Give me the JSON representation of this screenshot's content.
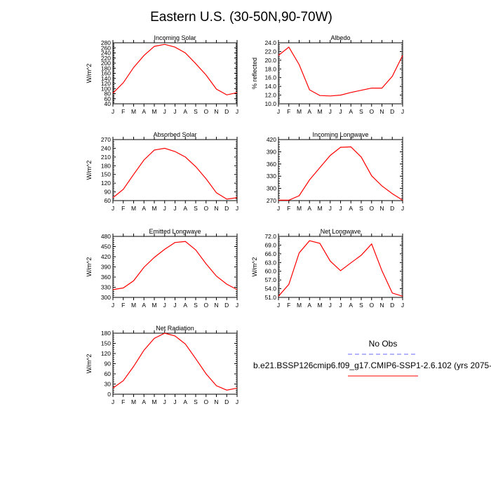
{
  "figure": {
    "title": "Eastern U.S. (30-50N,90-70W)",
    "legend": {
      "obs_label": "No Obs",
      "model_label": "b.e21.BSSP126cmip6.f09_g17.CMIP6-SSP1-2.6.102 (yrs 2075-",
      "obs_color": "#6b6bff",
      "model_color": "#ff0000"
    }
  },
  "chart_data": [
    {
      "type": "line",
      "title": "Incoming Solar",
      "ylabel": "W/m^2",
      "categories": [
        "J",
        "F",
        "M",
        "A",
        "M",
        "J",
        "J",
        "A",
        "S",
        "O",
        "N",
        "D",
        "J"
      ],
      "ylim": [
        40,
        280
      ],
      "yticks": [
        "40",
        "60",
        "80",
        "100",
        "120",
        "140",
        "160",
        "180",
        "200",
        "220",
        "240",
        "260",
        "280"
      ],
      "series": [
        {
          "color": "#ff0000",
          "values": [
            82,
            123,
            183,
            230,
            266,
            274,
            263,
            240,
            198,
            153,
            98,
            75,
            84
          ]
        }
      ]
    },
    {
      "type": "line",
      "title": "Albedo",
      "ylabel": "% reflected",
      "categories": [
        "J",
        "F",
        "M",
        "A",
        "M",
        "J",
        "J",
        "A",
        "S",
        "O",
        "N",
        "D",
        "J"
      ],
      "ylim": [
        10,
        24
      ],
      "yticks": [
        "10.0",
        "12.0",
        "14.0",
        "16.0",
        "18.0",
        "20.0",
        "22.0",
        "24.0"
      ],
      "series": [
        {
          "color": "#ff0000",
          "values": [
            21.1,
            23.0,
            19.0,
            13.2,
            11.9,
            11.8,
            12.0,
            12.6,
            13.1,
            13.6,
            13.6,
            16.3,
            21.1
          ]
        }
      ]
    },
    {
      "type": "line",
      "title": "Absorbed Solar",
      "ylabel": "W/m^2",
      "categories": [
        "J",
        "F",
        "M",
        "A",
        "M",
        "J",
        "J",
        "A",
        "S",
        "O",
        "N",
        "D",
        "J"
      ],
      "ylim": [
        60,
        270
      ],
      "yticks": [
        "60",
        "90",
        "120",
        "150",
        "180",
        "210",
        "240",
        "270"
      ],
      "series": [
        {
          "color": "#ff0000",
          "values": [
            70,
            99,
            150,
            200,
            234,
            240,
            229,
            210,
            177,
            135,
            87,
            65,
            70
          ]
        }
      ]
    },
    {
      "type": "line",
      "title": "Incoming Longwave",
      "ylabel": "",
      "categories": [
        "J",
        "F",
        "M",
        "A",
        "M",
        "J",
        "J",
        "A",
        "S",
        "O",
        "N",
        "D",
        "J"
      ],
      "ylim": [
        270,
        420
      ],
      "yticks": [
        "270",
        "300",
        "330",
        "360",
        "390",
        "420"
      ],
      "series": [
        {
          "color": "#ff0000",
          "values": [
            271,
            271,
            282,
            321,
            351,
            381,
            401,
            402,
            377,
            331,
            306,
            287,
            271
          ]
        }
      ]
    },
    {
      "type": "line",
      "title": "Emitted Longwave",
      "ylabel": "W/m^2",
      "categories": [
        "J",
        "F",
        "M",
        "A",
        "M",
        "J",
        "J",
        "A",
        "S",
        "O",
        "N",
        "D",
        "J"
      ],
      "ylim": [
        300,
        480
      ],
      "yticks": [
        "300",
        "330",
        "360",
        "390",
        "420",
        "450",
        "480"
      ],
      "series": [
        {
          "color": "#ff0000",
          "values": [
            323,
            328,
            349,
            389,
            418,
            442,
            462,
            465,
            440,
            399,
            363,
            339,
            323
          ]
        }
      ]
    },
    {
      "type": "line",
      "title": "Net Longwave",
      "ylabel": "W/m^2",
      "categories": [
        "J",
        "F",
        "M",
        "A",
        "M",
        "J",
        "J",
        "A",
        "S",
        "O",
        "N",
        "D",
        "J"
      ],
      "ylim": [
        51,
        72
      ],
      "yticks": [
        "51.0",
        "54.0",
        "57.0",
        "60.0",
        "63.0",
        "66.0",
        "69.0",
        "72.0"
      ],
      "series": [
        {
          "color": "#ff0000",
          "values": [
            51.4,
            55.5,
            66.3,
            70.5,
            69.6,
            63.5,
            60.2,
            62.9,
            65.5,
            69.4,
            60.2,
            52.5,
            51.4
          ]
        }
      ]
    },
    {
      "type": "line",
      "title": "Net Radiation",
      "ylabel": "W/m^2",
      "categories": [
        "J",
        "F",
        "M",
        "A",
        "M",
        "J",
        "J",
        "A",
        "S",
        "O",
        "N",
        "D",
        "J"
      ],
      "ylim": [
        0,
        180
      ],
      "yticks": [
        "0",
        "30",
        "60",
        "90",
        "120",
        "150",
        "180"
      ],
      "series": [
        {
          "color": "#ff0000",
          "values": [
            18,
            40,
            82,
            130,
            165,
            180,
            172,
            148,
            105,
            60,
            25,
            12,
            18
          ]
        }
      ]
    }
  ]
}
